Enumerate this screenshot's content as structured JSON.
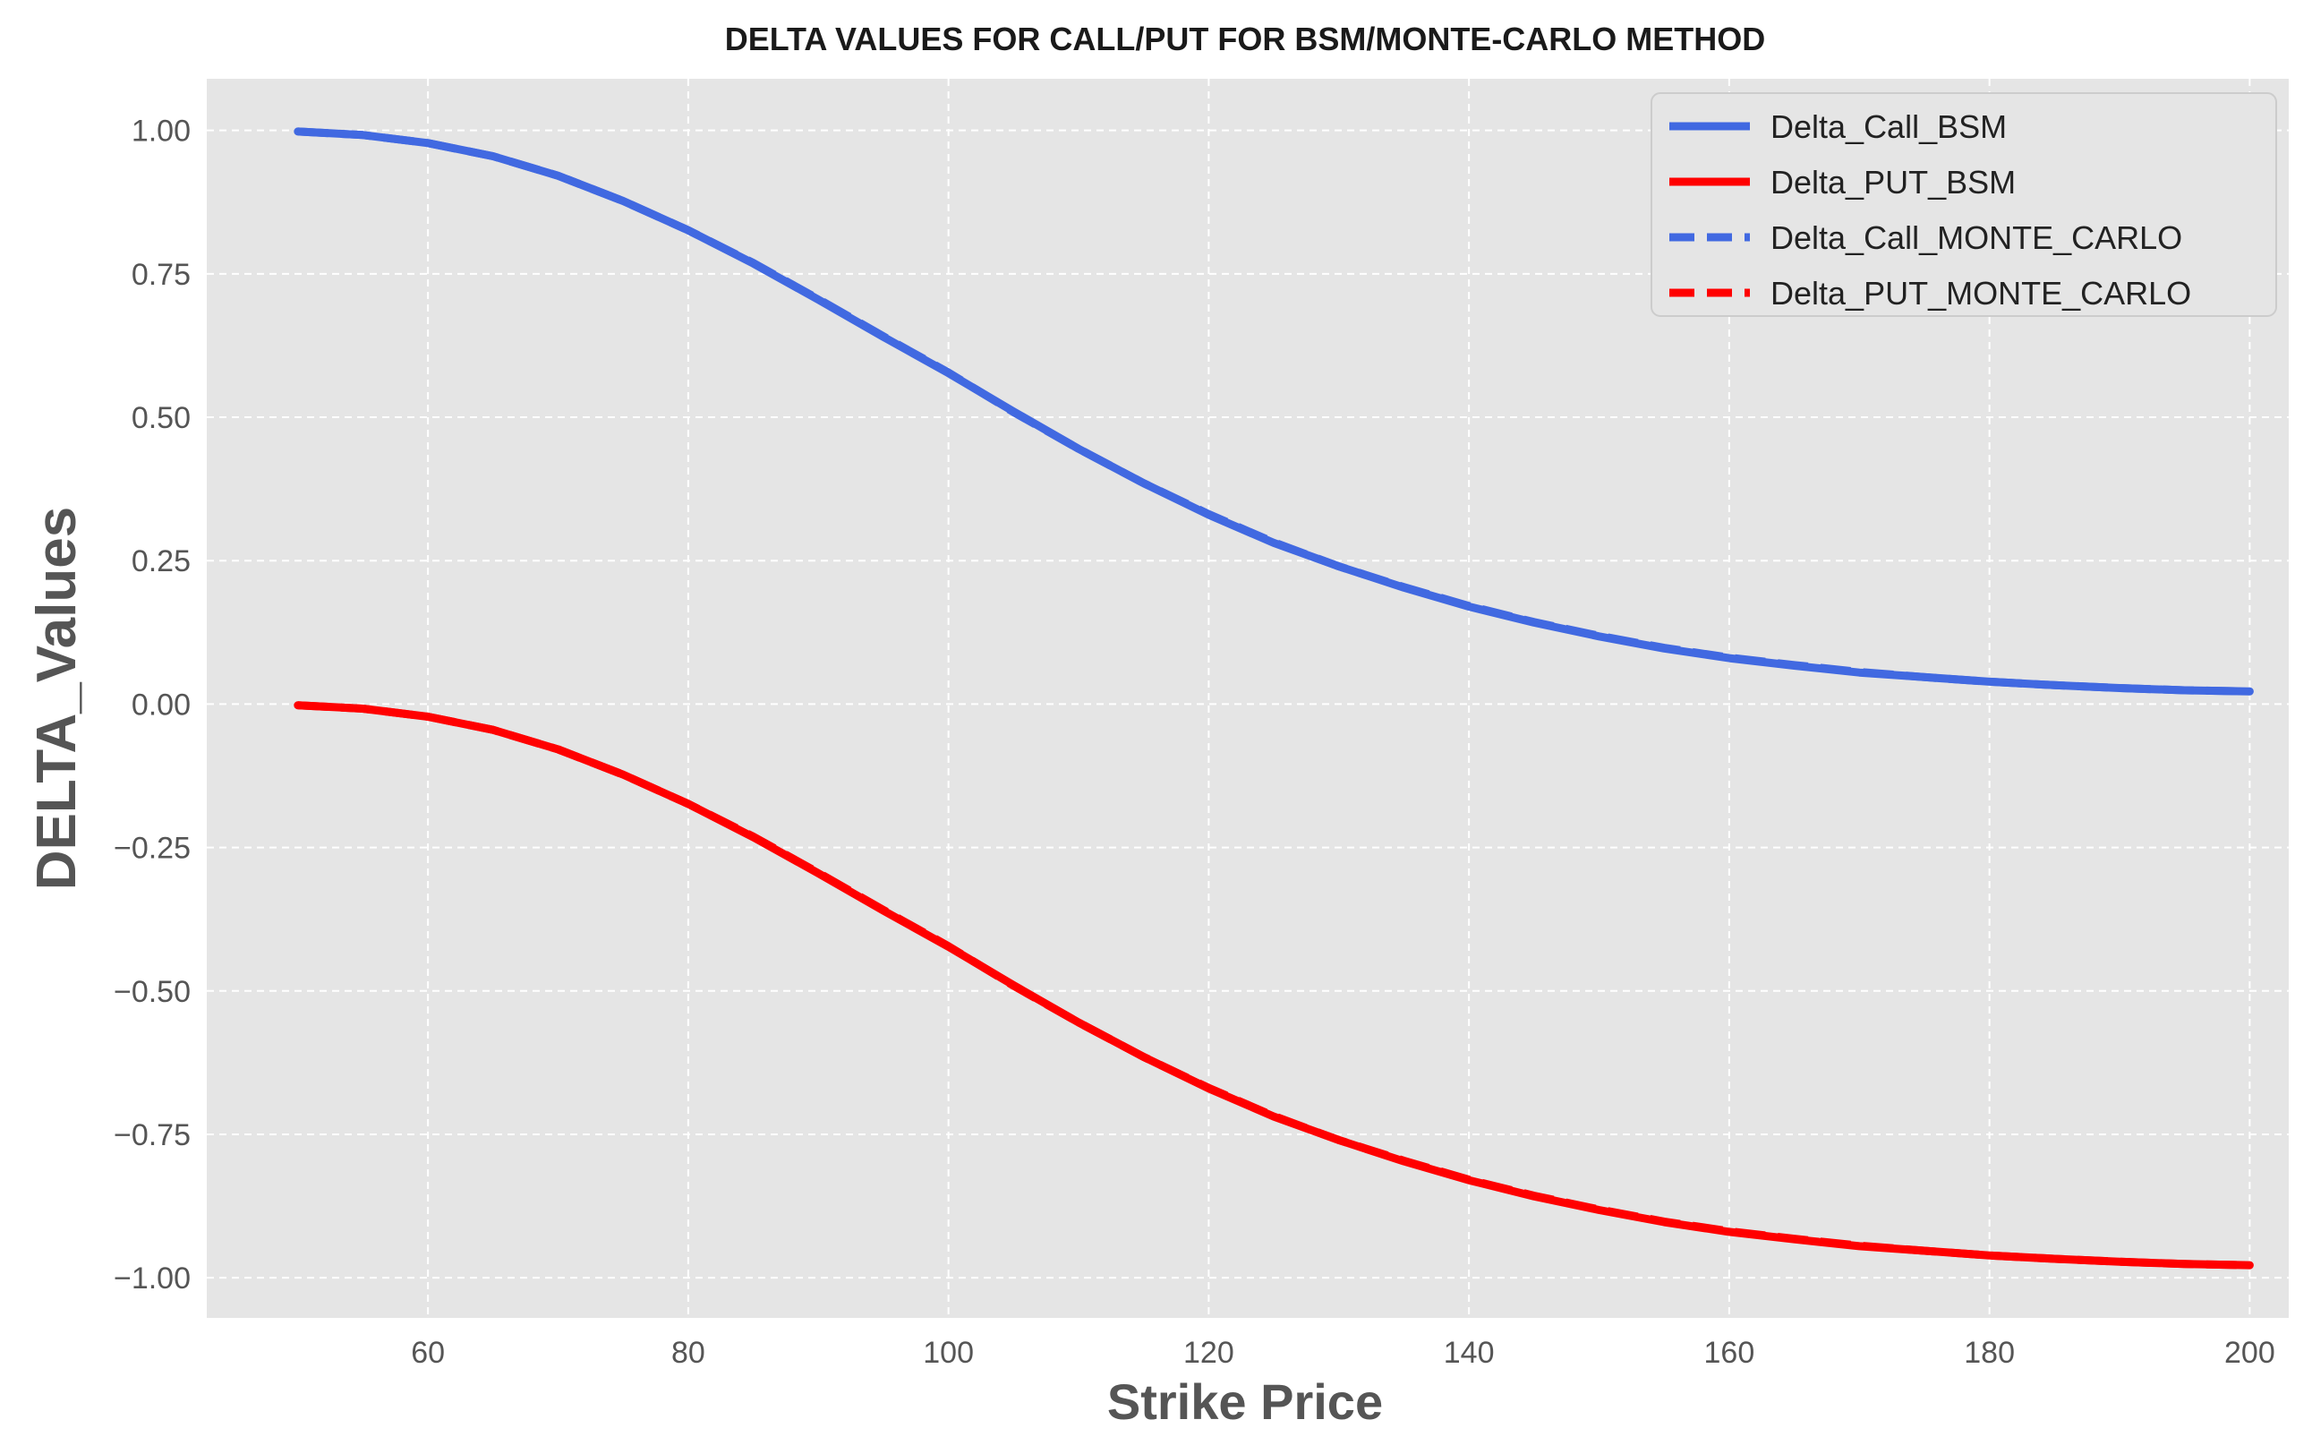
{
  "chart_data": {
    "type": "line",
    "title": "DELTA VALUES FOR CALL/PUT FOR BSM/MONTE-CARLO METHOD",
    "xlabel": "Strike Price",
    "ylabel": "DELTA_Values",
    "xlim": [
      43,
      203
    ],
    "ylim": [
      -1.07,
      1.09
    ],
    "xticks": [
      60,
      80,
      100,
      120,
      140,
      160,
      180,
      200
    ],
    "xtick_labels": [
      "60",
      "80",
      "100",
      "120",
      "140",
      "160",
      "180",
      "200"
    ],
    "yticks": [
      1.0,
      0.75,
      0.5,
      0.25,
      0.0,
      -0.25,
      -0.5,
      -0.75,
      -1.0
    ],
    "ytick_labels": [
      "1.00",
      "0.75",
      "0.50",
      "0.25",
      "0.00",
      "−0.25",
      "−0.50",
      "−0.75",
      "−1.00"
    ],
    "grid": true,
    "legend_position": "top-right",
    "background_color": "#e5e5e5",
    "x": [
      50,
      55,
      60,
      65,
      70,
      75,
      80,
      85,
      90,
      95,
      100,
      105,
      110,
      115,
      120,
      125,
      130,
      135,
      140,
      145,
      150,
      155,
      160,
      165,
      170,
      175,
      180,
      185,
      190,
      195,
      200
    ],
    "series": [
      {
        "name": "Delta_Call_BSM",
        "color": "#4169e1",
        "style": "solid",
        "values": [
          0.998,
          0.992,
          0.978,
          0.955,
          0.921,
          0.877,
          0.826,
          0.768,
          0.705,
          0.64,
          0.577,
          0.51,
          0.445,
          0.385,
          0.33,
          0.281,
          0.24,
          0.203,
          0.17,
          0.142,
          0.118,
          0.097,
          0.08,
          0.067,
          0.055,
          0.047,
          0.039,
          0.033,
          0.028,
          0.024,
          0.022
        ]
      },
      {
        "name": "Delta_PUT_BSM",
        "color": "#ff0000",
        "style": "solid",
        "values": [
          -0.002,
          -0.008,
          -0.022,
          -0.045,
          -0.079,
          -0.123,
          -0.174,
          -0.232,
          -0.295,
          -0.36,
          -0.423,
          -0.49,
          -0.555,
          -0.615,
          -0.67,
          -0.719,
          -0.76,
          -0.797,
          -0.83,
          -0.858,
          -0.882,
          -0.903,
          -0.92,
          -0.933,
          -0.945,
          -0.953,
          -0.961,
          -0.967,
          -0.972,
          -0.976,
          -0.978
        ]
      },
      {
        "name": "Delta_Call_MONTE_CARLO",
        "color": "#4169e1",
        "style": "dashed",
        "values": [
          0.998,
          0.992,
          0.978,
          0.955,
          0.921,
          0.877,
          0.826,
          0.769,
          0.706,
          0.641,
          0.578,
          0.509,
          0.445,
          0.385,
          0.331,
          0.282,
          0.24,
          0.204,
          0.171,
          0.143,
          0.119,
          0.098,
          0.081,
          0.068,
          0.056,
          0.047,
          0.039,
          0.033,
          0.028,
          0.024,
          0.022
        ]
      },
      {
        "name": "Delta_PUT_MONTE_CARLO",
        "color": "#ff0000",
        "style": "dashed",
        "values": [
          -0.002,
          -0.008,
          -0.022,
          -0.045,
          -0.079,
          -0.123,
          -0.174,
          -0.231,
          -0.294,
          -0.359,
          -0.422,
          -0.491,
          -0.555,
          -0.615,
          -0.669,
          -0.718,
          -0.76,
          -0.796,
          -0.829,
          -0.857,
          -0.881,
          -0.902,
          -0.919,
          -0.932,
          -0.944,
          -0.953,
          -0.961,
          -0.967,
          -0.972,
          -0.976,
          -0.978
        ]
      }
    ]
  }
}
